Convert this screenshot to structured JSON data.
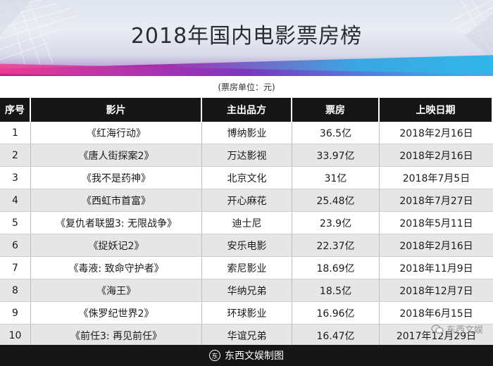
{
  "title": "2018年国内电影票房榜",
  "unit_note": "(票房单位：元)",
  "columns": [
    "序号",
    "影片",
    "主出品方",
    "票房",
    "上映日期"
  ],
  "rows": [
    {
      "rank": "1",
      "film": "《红海行动》",
      "producer": "博纳影业",
      "box_office": "36.5亿",
      "release": "2018年2月16日"
    },
    {
      "rank": "2",
      "film": "《唐人街探案2》",
      "producer": "万达影视",
      "box_office": "33.97亿",
      "release": "2018年2月16日"
    },
    {
      "rank": "3",
      "film": "《我不是药神》",
      "producer": "北京文化",
      "box_office": "31亿",
      "release": "2018年7月5日"
    },
    {
      "rank": "4",
      "film": "《西虹市首富》",
      "producer": "开心麻花",
      "box_office": "25.48亿",
      "release": "2018年7月27日"
    },
    {
      "rank": "5",
      "film": "《复仇者联盟3: 无限战争》",
      "producer": "迪士尼",
      "box_office": "23.9亿",
      "release": "2018年5月11日"
    },
    {
      "rank": "6",
      "film": "《捉妖记2》",
      "producer": "安乐电影",
      "box_office": "22.37亿",
      "release": "2018年2月16日"
    },
    {
      "rank": "7",
      "film": "《毒液: 致命守护者》",
      "producer": "索尼影业",
      "box_office": "18.69亿",
      "release": "2018年11月9日"
    },
    {
      "rank": "8",
      "film": "《海王》",
      "producer": "华纳兄弟",
      "box_office": "18.5亿",
      "release": "2018年12月7日"
    },
    {
      "rank": "9",
      "film": "《侏罗纪世界2》",
      "producer": "环球影业",
      "box_office": "16.96亿",
      "release": "2018年6月15日"
    },
    {
      "rank": "10",
      "film": "《前任3: 再见前任》",
      "producer": "华谊兄弟",
      "box_office": "16.47亿",
      "release": "2017年12月29日"
    }
  ],
  "footer": {
    "brand": "东西文娱制图",
    "logo_glyph": "东"
  },
  "watermark": {
    "text": "东西文娱",
    "icon": "wechat-icon"
  },
  "colors": {
    "header_bg": "#161616",
    "alt_row": "#e6e6e6",
    "banner_pink": "#c6217d",
    "banner_blue": "#2fb9e9"
  }
}
